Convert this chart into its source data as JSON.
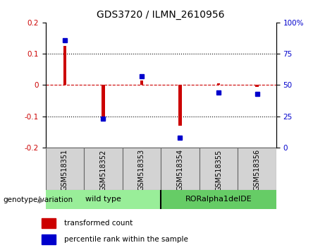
{
  "title": "GDS3720 / ILMN_2610956",
  "samples": [
    "GSM518351",
    "GSM518352",
    "GSM518353",
    "GSM518354",
    "GSM518355",
    "GSM518356"
  ],
  "bar_values": [
    0.125,
    -0.105,
    0.015,
    -0.13,
    0.005,
    -0.005
  ],
  "percentile_values": [
    86,
    23,
    57,
    8,
    44,
    43
  ],
  "ylim_left": [
    -0.2,
    0.2
  ],
  "ylim_right": [
    0,
    100
  ],
  "yticks_left": [
    -0.2,
    -0.1,
    0,
    0.1,
    0.2
  ],
  "yticks_right": [
    0,
    25,
    50,
    75,
    100
  ],
  "bar_color": "#cc0000",
  "point_color": "#0000cc",
  "zero_line_color": "#cc0000",
  "dotted_line_color": "#000000",
  "group1_label": "wild type",
  "group2_label": "RORalpha1delDE",
  "group1_indices": [
    0,
    1,
    2
  ],
  "group2_indices": [
    3,
    4,
    5
  ],
  "group1_color": "#99ee99",
  "group2_color": "#66cc66",
  "genotype_label": "genotype/variation",
  "legend_bar_label": "transformed count",
  "legend_point_label": "percentile rank within the sample",
  "background_color": "#ffffff",
  "plot_bg_color": "#ffffff"
}
